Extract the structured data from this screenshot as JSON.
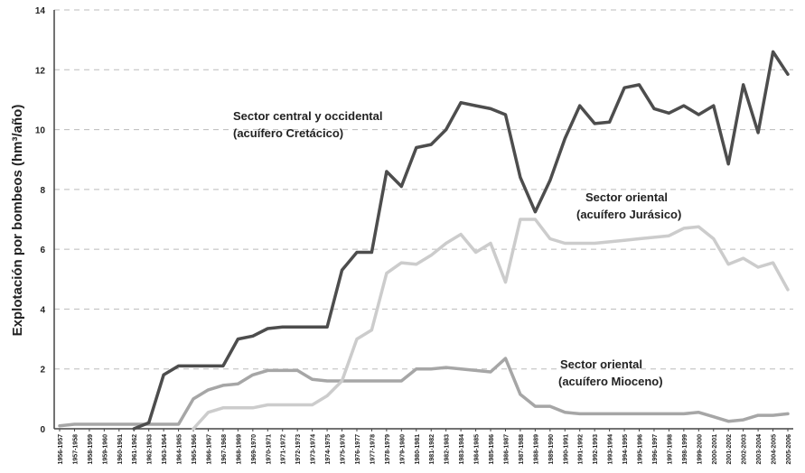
{
  "chart_data": {
    "type": "line",
    "ylabel": "Explotación por bombeos (hm³/año)",
    "ylim": [
      0,
      14
    ],
    "yticks": [
      0,
      2,
      4,
      6,
      8,
      10,
      12,
      14
    ],
    "grid": "horizontal-dashed",
    "categories": [
      "1956-1957",
      "1957-1958",
      "1958-1959",
      "1959-1960",
      "1960-1961",
      "1961-1962",
      "1962-1963",
      "1963-1964",
      "1964-1965",
      "1965-1966",
      "1966-1967",
      "1967-1968",
      "1968-1969",
      "1969-1970",
      "1970-1971",
      "1971-1972",
      "1972-1973",
      "1973-1974",
      "1974-1975",
      "1975-1976",
      "1976-1977",
      "1977-1978",
      "1978-1979",
      "1979-1980",
      "1980-1981",
      "1981-1982",
      "1982-1983",
      "1983-1984",
      "1984-1985",
      "1985-1986",
      "1986-1987",
      "1987-1988",
      "1988-1989",
      "1989-1990",
      "1990-1991",
      "1991-1992",
      "1992-1993",
      "1993-1994",
      "1994-1995",
      "1995-1996",
      "1996-1997",
      "1997-1998",
      "1998-1999",
      "1999-2000",
      "2000-2001",
      "2001-2002",
      "2002-2003",
      "2003-2004",
      "2004-2005",
      "2005-2006"
    ],
    "series": [
      {
        "color": "#4d4d4d",
        "values": [
          null,
          null,
          null,
          null,
          null,
          0.0,
          0.2,
          1.8,
          2.1,
          2.1,
          2.1,
          2.1,
          3.0,
          3.1,
          3.35,
          3.4,
          3.4,
          3.4,
          3.4,
          5.3,
          5.9,
          5.9,
          8.6,
          8.1,
          9.4,
          9.5,
          10.0,
          10.9,
          10.8,
          10.7,
          10.5,
          8.4,
          7.25,
          8.3,
          9.7,
          10.8,
          10.2,
          10.25,
          11.4,
          11.5,
          10.7,
          10.55,
          10.8,
          10.5,
          10.8,
          8.85,
          11.5,
          9.9,
          12.6,
          11.85
        ],
        "label_lines": [
          "Sector central y occidental",
          "(acuífero Cretácico)"
        ]
      },
      {
        "color": "#cccccc",
        "values": [
          null,
          null,
          null,
          null,
          null,
          null,
          null,
          null,
          null,
          0.0,
          0.55,
          0.7,
          0.7,
          0.7,
          0.8,
          0.8,
          0.8,
          0.8,
          1.1,
          1.6,
          3.0,
          3.3,
          5.2,
          5.55,
          5.5,
          5.8,
          6.2,
          6.5,
          5.9,
          6.2,
          4.9,
          7.0,
          7.0,
          6.35,
          6.2,
          6.2,
          6.2,
          6.25,
          6.3,
          6.35,
          6.4,
          6.45,
          6.7,
          6.75,
          6.35,
          5.5,
          5.7,
          5.4,
          5.55,
          4.65
        ],
        "label_lines": [
          "Sector oriental",
          "(acuífero Jurásico)"
        ]
      },
      {
        "color": "#a6a6a6",
        "values": [
          0.1,
          0.15,
          0.15,
          0.15,
          0.15,
          0.15,
          0.15,
          0.15,
          0.15,
          1.0,
          1.3,
          1.45,
          1.5,
          1.8,
          1.95,
          1.95,
          1.95,
          1.65,
          1.6,
          1.6,
          1.6,
          1.6,
          1.6,
          1.6,
          2.0,
          2.0,
          2.05,
          2.0,
          1.95,
          1.9,
          2.35,
          1.15,
          0.75,
          0.75,
          0.55,
          0.5,
          0.5,
          0.5,
          0.5,
          0.5,
          0.5,
          0.5,
          0.5,
          0.55,
          0.4,
          0.25,
          0.3,
          0.45,
          0.45,
          0.5
        ],
        "label_lines": [
          "Sector oriental",
          "(acuífero Mioceno)"
        ]
      }
    ]
  }
}
